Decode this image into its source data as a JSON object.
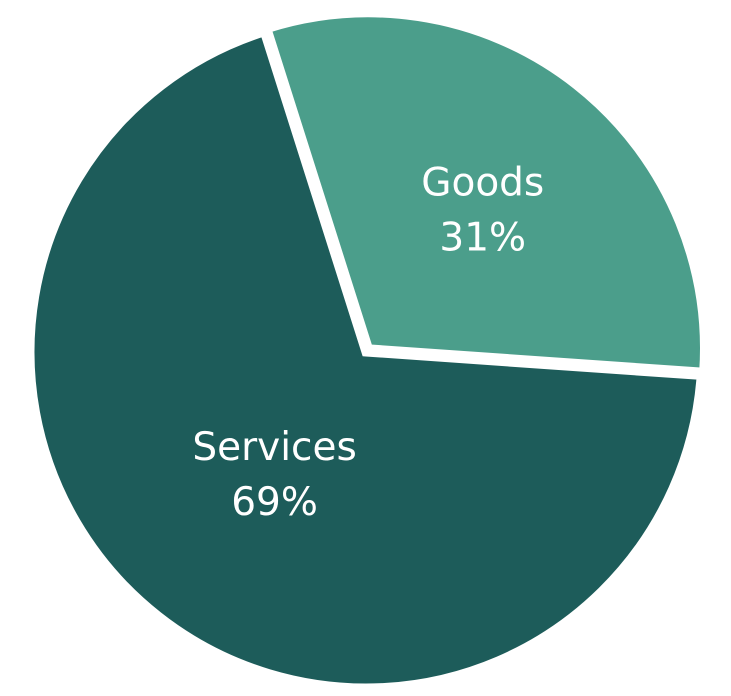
{
  "chart_data": {
    "type": "pie",
    "title": "",
    "slices": [
      {
        "label": "Services",
        "value": 69,
        "value_label": "69%",
        "color": "#1d5c5a"
      },
      {
        "label": "Goods",
        "value": 31,
        "value_label": "31%",
        "color": "#4b9e8b"
      }
    ],
    "background": "#ffffff",
    "label_color": "#ffffff",
    "legend": "none"
  }
}
